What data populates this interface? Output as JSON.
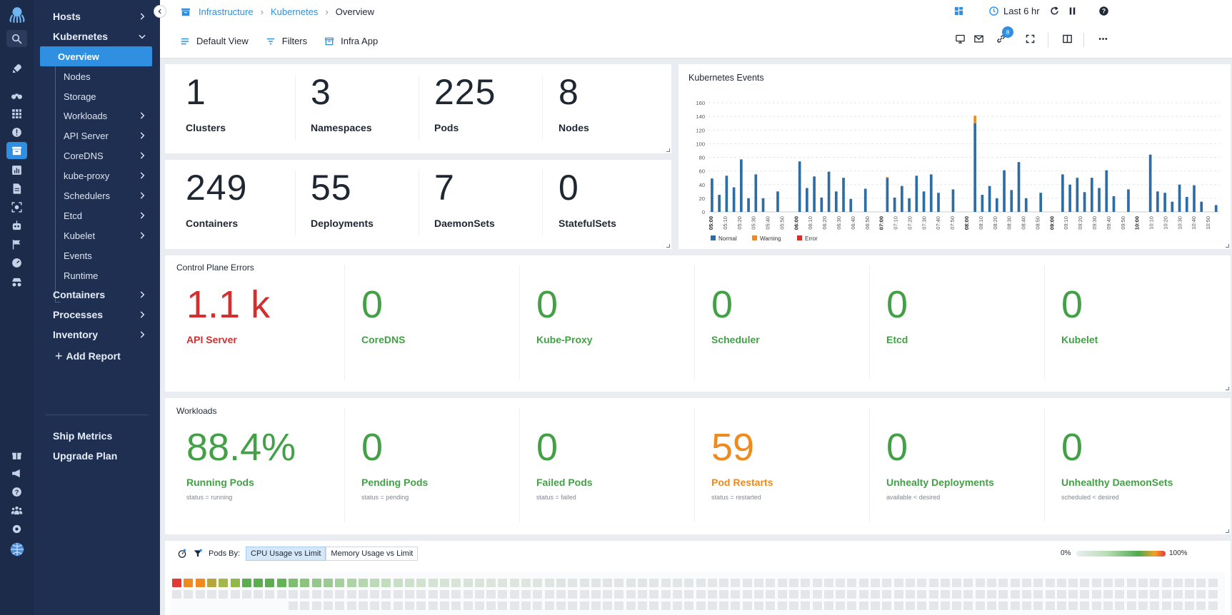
{
  "rail": {
    "icons": [
      "logo-octopus-icon",
      "search-icon",
      "rocket-icon",
      "binoculars-icon",
      "grid-icon",
      "alert-icon",
      "infrastructure-icon",
      "dashboard-chart-icon",
      "document-icon",
      "scan-icon",
      "robot-icon",
      "flag-icon",
      "gauge-icon",
      "incognito-icon",
      "gift-icon",
      "megaphone-icon",
      "help-icon",
      "team-icon",
      "settings-icon",
      "globe-avatar-icon"
    ]
  },
  "sidebar": {
    "hosts": "Hosts",
    "kubernetes": "Kubernetes",
    "sub_items": [
      "Overview",
      "Nodes",
      "Storage",
      "Workloads",
      "API Server",
      "CoreDNS",
      "kube-proxy",
      "Schedulers",
      "Etcd",
      "Kubelet",
      "Events",
      "Runtime"
    ],
    "containers": "Containers",
    "processes": "Processes",
    "inventory": "Inventory",
    "add_report": "Add Report",
    "ship_metrics": "Ship Metrics",
    "upgrade_plan": "Upgrade Plan"
  },
  "breadcrumb": {
    "items": [
      "Infrastructure",
      "Kubernetes",
      "Overview"
    ]
  },
  "toolbar": {
    "default_view": "Default View",
    "filters": "Filters",
    "infra_app": "Infra App"
  },
  "top_right": {
    "time_range": "Last 6 hr",
    "link_badge": "8"
  },
  "stats_top": [
    {
      "value": "1",
      "label": "Clusters"
    },
    {
      "value": "3",
      "label": "Namespaces"
    },
    {
      "value": "225",
      "label": "Pods"
    },
    {
      "value": "8",
      "label": "Nodes"
    }
  ],
  "stats_bottom": [
    {
      "value": "249",
      "label": "Containers"
    },
    {
      "value": "55",
      "label": "Deployments"
    },
    {
      "value": "7",
      "label": "DaemonSets"
    },
    {
      "value": "0",
      "label": "StatefulSets"
    }
  ],
  "events_panel": {
    "title": "Kubernetes Events"
  },
  "chart_data": {
    "type": "bar",
    "title": "Kubernetes Events",
    "ylim": [
      0,
      160
    ],
    "yticks": [
      0,
      20,
      40,
      60,
      80,
      100,
      120,
      140,
      160
    ],
    "xticks": [
      "05:00",
      "05:10",
      "05:20",
      "05:30",
      "05:40",
      "05:50",
      "06:00",
      "06:10",
      "06:20",
      "06:30",
      "06:40",
      "06:50",
      "07:00",
      "07:10",
      "07:20",
      "07:30",
      "07:40",
      "07:50",
      "08:00",
      "08:10",
      "08:20",
      "08:30",
      "08:40",
      "08:50",
      "09:00",
      "09:10",
      "09:20",
      "09:30",
      "09:40",
      "09:50",
      "10:00",
      "10:10",
      "10:20",
      "10:30",
      "10:40",
      "10:50"
    ],
    "grid": true,
    "legend_position": "bottom-left",
    "series": [
      {
        "name": "Normal",
        "color": "#2e6da4",
        "values": [
          49,
          25,
          53,
          36,
          77,
          20,
          55,
          20,
          0,
          30,
          0,
          0,
          74,
          35,
          52,
          21,
          59,
          30,
          50,
          19,
          0,
          34,
          0,
          0,
          50,
          21,
          38,
          20,
          53,
          30,
          55,
          28,
          0,
          33,
          0,
          0,
          130,
          25,
          38,
          20,
          61,
          32,
          73,
          20,
          0,
          28,
          0,
          0,
          55,
          40,
          50,
          29,
          50,
          35,
          61,
          23,
          0,
          33,
          0,
          0,
          84,
          30,
          28,
          15,
          40,
          22,
          39,
          15,
          0,
          10
        ]
      },
      {
        "name": "Warning",
        "color": "#ef8a1f",
        "values": [
          0,
          0,
          0,
          0,
          0,
          0,
          0,
          0,
          0,
          0,
          0,
          0,
          0,
          0,
          0,
          0,
          0,
          0,
          0,
          0,
          0,
          0,
          0,
          0,
          1,
          0,
          0,
          0,
          0,
          0,
          0,
          0,
          0,
          0,
          0,
          0,
          11,
          0,
          0,
          0,
          0,
          0,
          0,
          0,
          0,
          0,
          0,
          0,
          0,
          0,
          0,
          0,
          0,
          0,
          0,
          0,
          0,
          0,
          0,
          0,
          0,
          0,
          0,
          0,
          0,
          0,
          0,
          0,
          0,
          0
        ]
      },
      {
        "name": "Error",
        "color": "#d32f2f",
        "values": [
          0,
          0,
          0,
          0,
          0,
          0,
          0,
          0,
          0,
          0,
          0,
          0,
          0,
          0,
          0,
          0,
          0,
          0,
          0,
          0,
          0,
          0,
          0,
          0,
          0,
          0,
          0,
          0,
          0,
          0,
          0,
          0,
          0,
          0,
          0,
          0,
          0,
          0,
          0,
          0,
          0,
          0,
          0,
          0,
          0,
          0,
          0,
          0,
          0,
          0,
          0,
          0,
          0,
          0,
          0,
          0,
          0,
          0,
          0,
          0,
          0,
          0,
          0,
          0,
          0,
          0,
          0,
          0,
          0,
          0
        ]
      }
    ]
  },
  "control_plane": {
    "title": "Control Plane Errors",
    "items": [
      {
        "value": "1.1 k",
        "label": "API Server",
        "status": "red"
      },
      {
        "value": "0",
        "label": "CoreDNS",
        "status": "green"
      },
      {
        "value": "0",
        "label": "Kube-Proxy",
        "status": "green"
      },
      {
        "value": "0",
        "label": "Scheduler",
        "status": "green"
      },
      {
        "value": "0",
        "label": "Etcd",
        "status": "green"
      },
      {
        "value": "0",
        "label": "Kubelet",
        "status": "green"
      }
    ]
  },
  "workloads": {
    "title": "Workloads",
    "items": [
      {
        "value": "88.4%",
        "label": "Running Pods",
        "sub": "status = running",
        "status": "green"
      },
      {
        "value": "0",
        "label": "Pending Pods",
        "sub": "status = pending",
        "status": "green"
      },
      {
        "value": "0",
        "label": "Failed Pods",
        "sub": "status = failed",
        "status": "green"
      },
      {
        "value": "59",
        "label": "Pod Restarts",
        "sub": "status = restarted",
        "status": "orange"
      },
      {
        "value": "0",
        "label": "Unhealty Deployments",
        "sub": "available < desired",
        "status": "green"
      },
      {
        "value": "0",
        "label": "Unhealthy DaemonSets",
        "sub": "scheduled < desired",
        "status": "green"
      }
    ]
  },
  "pods_heatmap": {
    "pods_by_label": "Pods By:",
    "cpu_option": "CPU Usage vs Limit",
    "memory_option": "Memory Usage vs Limit",
    "scale_min": "0%",
    "scale_max": "100%",
    "row1_colors": [
      "#e53935",
      "#ef8a1f",
      "#ef8a1f",
      "#b5a640",
      "#a4b74a",
      "#8fba48",
      "#5aae4d",
      "#5aae4d",
      "#5aae4d",
      "#66b258",
      "#7fbd72",
      "#8cc37f",
      "#94c78a",
      "#9bca92",
      "#a5cf9d",
      "#aed3a7",
      "#b5d6af",
      "#bcdab7",
      "#c2dcbe",
      "#c8dfc5",
      "#cde1ca",
      "#d1e2cf",
      "#d4e3d2",
      "#d6e3d5",
      "#d8e4d7",
      "#d9e4d9",
      "#dbe4db",
      "#dce5dc",
      "#dde5dd",
      "#dee5de",
      "#dfe5df",
      "#dfe5e0",
      "#e0e5e1",
      "#e0e5e2",
      "#e1e5e3",
      "#e1e5e3",
      "#e1e5e4",
      "#e2e5e4",
      "#e2e5e5",
      "#e2e5e5",
      "#e2e5e6",
      "#e3e5e6",
      "#e3e6e7",
      "#e3e6e7",
      "#e3e6e8",
      "#e3e6e8",
      "#e4e6e8",
      "#e4e6e9",
      "#e4e6e9",
      "#e4e6e9",
      "#e4e6ea",
      "#e4e6ea",
      "#e4e6ea",
      "#e4e6ea",
      "#e4e6ea",
      "#e4e6ea",
      "#e4e6ea",
      "#e4e6ea",
      "#e4e6ea",
      "#e4e6ea",
      "#e4e6ea",
      "#e4e6ea",
      "#e4e6ea",
      "#e4e6ea",
      "#e4e6ea",
      "#e4e6ea",
      "#e4e6ea",
      "#e4e6ea",
      "#e4e6ea",
      "#e4e6ea",
      "#e4e6ea",
      "#e4e6ea",
      "#e4e6ea",
      "#e4e6ea",
      "#e4e6ea",
      "#e4e6ea",
      "#e4e6ea",
      "#e4e6ea",
      "#e4e6ea",
      "#e4e6ea",
      "#e4e6ea",
      "#e4e6ea",
      "#e4e6ea",
      "#e4e6ea",
      "#e4e6ea",
      "#e4e6ea",
      "#e4e6ea",
      "#e4e6ea",
      "#e4e6ea",
      "#e4e6ea"
    ],
    "rows": [
      90,
      90,
      80
    ]
  }
}
